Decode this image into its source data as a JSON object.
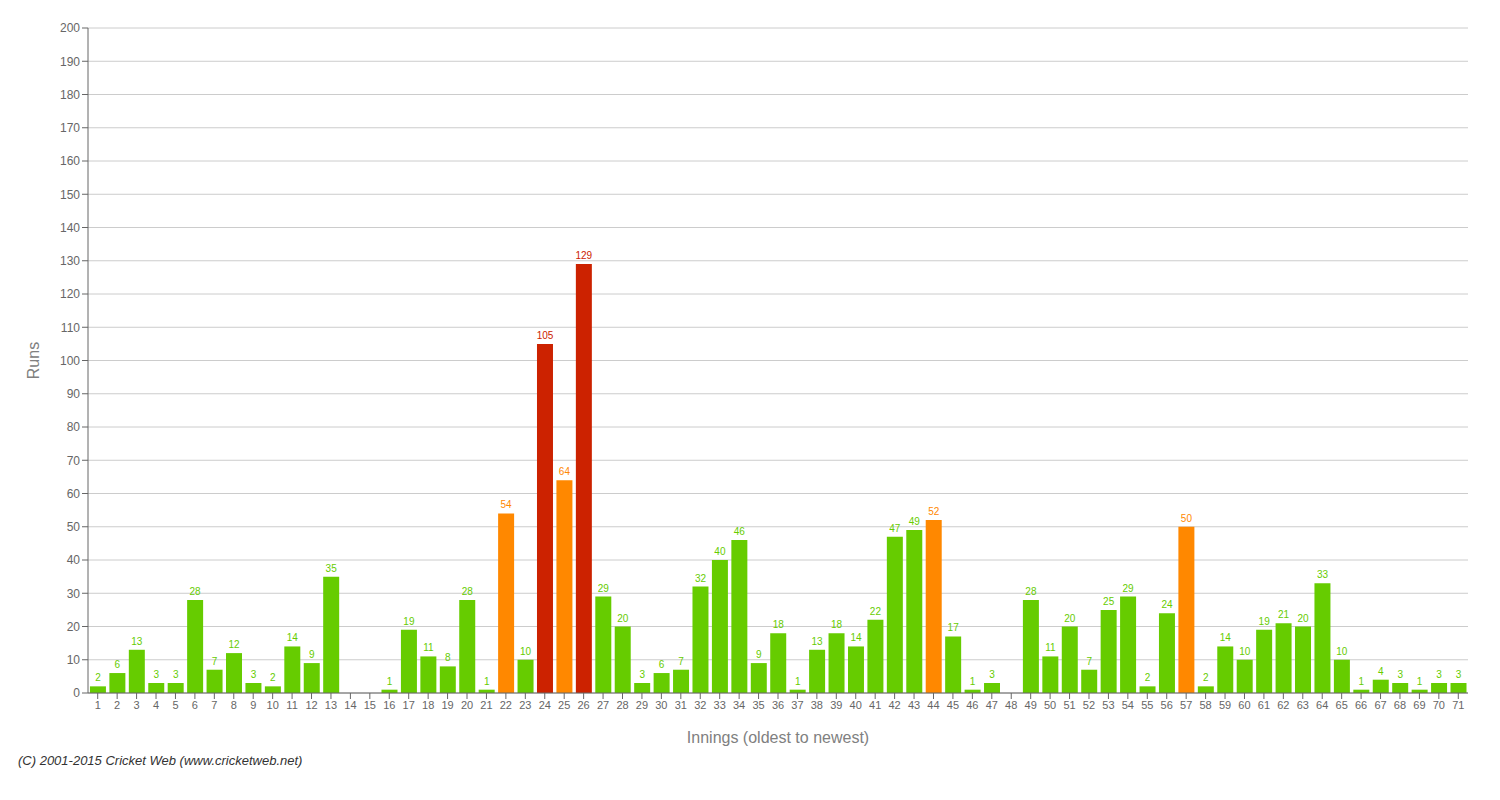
{
  "chart_data": {
    "type": "bar",
    "xlabel": "Innings (oldest to newest)",
    "ylabel": "Runs",
    "categories": [
      "1",
      "2",
      "3",
      "4",
      "5",
      "6",
      "7",
      "8",
      "9",
      "10",
      "11",
      "12",
      "13",
      "14",
      "15",
      "16",
      "17",
      "18",
      "19",
      "20",
      "21",
      "22",
      "23",
      "24",
      "25",
      "26",
      "27",
      "28",
      "29",
      "30",
      "31",
      "32",
      "33",
      "34",
      "35",
      "36",
      "37",
      "38",
      "39",
      "40",
      "41",
      "42",
      "43",
      "44",
      "45",
      "46",
      "47",
      "48",
      "49",
      "50",
      "51",
      "52",
      "53",
      "54",
      "55",
      "56",
      "57",
      "58",
      "59",
      "60",
      "61",
      "62",
      "63",
      "64",
      "65",
      "66",
      "67",
      "68",
      "69",
      "70",
      "71"
    ],
    "values": [
      2,
      6,
      13,
      3,
      3,
      28,
      7,
      12,
      3,
      2,
      14,
      9,
      35,
      0,
      0,
      1,
      19,
      11,
      8,
      28,
      1,
      54,
      10,
      105,
      64,
      129,
      29,
      20,
      3,
      6,
      7,
      32,
      40,
      46,
      9,
      18,
      1,
      13,
      18,
      14,
      22,
      47,
      49,
      52,
      17,
      1,
      3,
      0,
      28,
      11,
      20,
      7,
      25,
      29,
      2,
      24,
      50,
      2,
      14,
      10,
      19,
      21,
      20,
      33,
      10,
      1,
      4,
      3,
      1,
      3,
      3
    ],
    "colors": [
      "#66cc00",
      "#66cc00",
      "#66cc00",
      "#66cc00",
      "#66cc00",
      "#66cc00",
      "#66cc00",
      "#66cc00",
      "#66cc00",
      "#66cc00",
      "#66cc00",
      "#66cc00",
      "#66cc00",
      "#66cc00",
      "#66cc00",
      "#66cc00",
      "#66cc00",
      "#66cc00",
      "#66cc00",
      "#66cc00",
      "#66cc00",
      "#ff8800",
      "#66cc00",
      "#cc2200",
      "#ff8800",
      "#cc2200",
      "#66cc00",
      "#66cc00",
      "#66cc00",
      "#66cc00",
      "#66cc00",
      "#66cc00",
      "#66cc00",
      "#66cc00",
      "#66cc00",
      "#66cc00",
      "#66cc00",
      "#66cc00",
      "#66cc00",
      "#66cc00",
      "#66cc00",
      "#66cc00",
      "#66cc00",
      "#ff8800",
      "#66cc00",
      "#66cc00",
      "#66cc00",
      "#66cc00",
      "#66cc00",
      "#66cc00",
      "#66cc00",
      "#66cc00",
      "#66cc00",
      "#66cc00",
      "#66cc00",
      "#66cc00",
      "#ff8800",
      "#66cc00",
      "#66cc00",
      "#66cc00",
      "#66cc00",
      "#66cc00",
      "#66cc00",
      "#66cc00",
      "#66cc00",
      "#66cc00",
      "#66cc00",
      "#66cc00",
      "#66cc00",
      "#66cc00",
      "#66cc00"
    ],
    "ylim": [
      0,
      200
    ],
    "yticks": [
      0,
      10,
      20,
      30,
      40,
      50,
      60,
      70,
      80,
      90,
      100,
      110,
      120,
      130,
      140,
      150,
      160,
      170,
      180,
      190,
      200
    ],
    "grid": true,
    "data_labels": true,
    "annotations": [
      "(C) 2001-2015 Cricket Web (www.cricketweb.net)"
    ]
  }
}
